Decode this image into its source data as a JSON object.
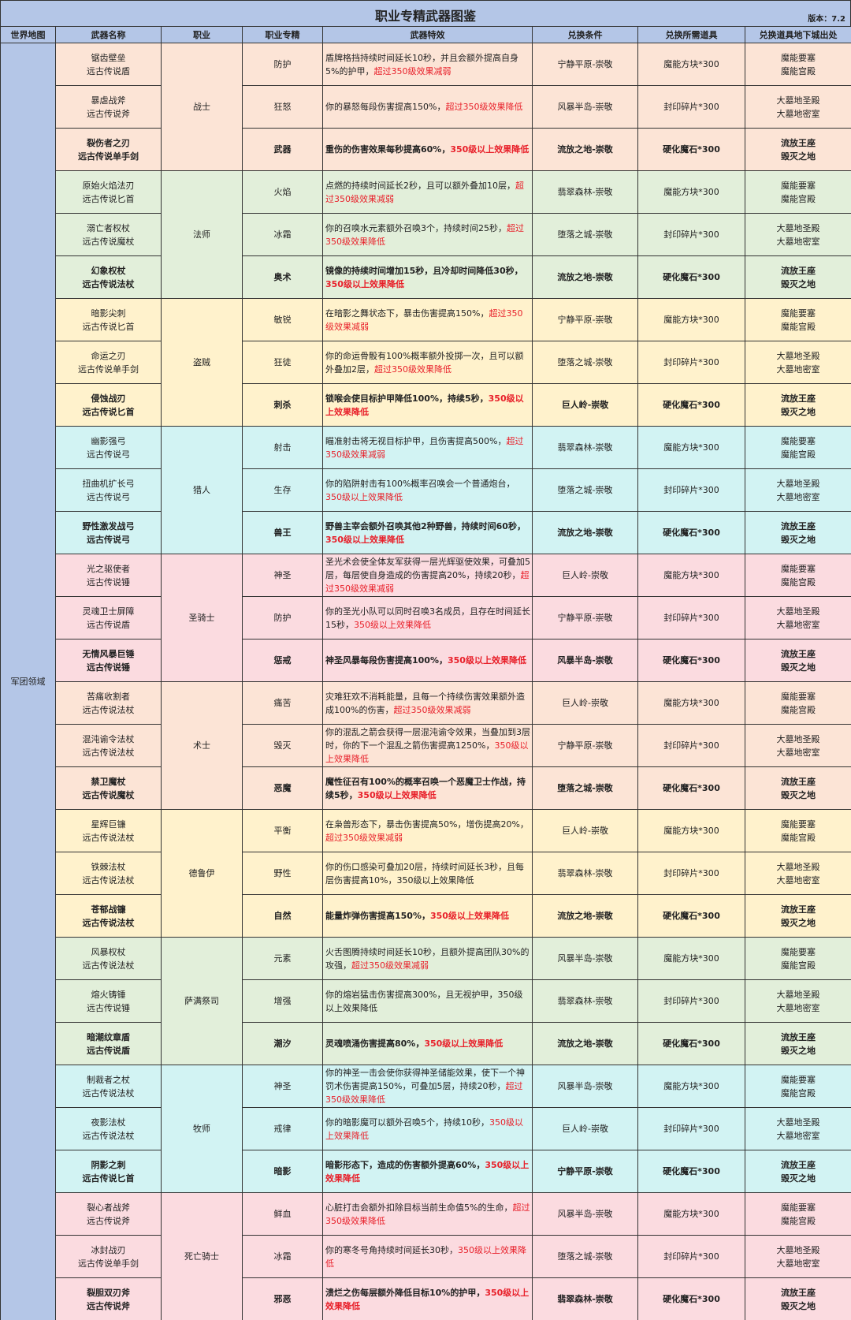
{
  "title": "职业专精武器图鉴",
  "version": "版本：7.2",
  "headers": [
    "世界地图",
    "武器名称",
    "职业",
    "职业专精",
    "武器特效",
    "兑换条件",
    "兑换所需道具",
    "兑换道具地下城出处"
  ],
  "world_map": "军团领域",
  "colors": {
    "header": "#b4c6e7",
    "warrior": "#fce4d6",
    "mage": "#e2efda",
    "rogue": "#fff2cc",
    "hunter": "#d2f3f3",
    "paladin": "#fbdbe0",
    "warlock": "#fce4d6",
    "druid": "#fff2cc",
    "shaman": "#e2efda",
    "priest": "#d2f3f3",
    "deathknight": "#fbdbe0",
    "highlight_text": "#e8202a"
  },
  "classes": [
    {
      "name": "战士",
      "color": "#fce4d6",
      "rows": [
        {
          "weapon": "锯齿壁垒",
          "type": "远古传说盾",
          "spec": "防护",
          "effect": "盾牌格挡持续时间延长10秒，并且会额外提高自身5%的护甲，",
          "effect_note": "超过350级效果减弱",
          "condition": "宁静平原-崇敬",
          "item": "魔能方块*300",
          "dungeons": [
            "魔能要塞",
            "魔能宫殿"
          ]
        },
        {
          "weapon": "暴虐战斧",
          "type": "远古传说斧",
          "spec": "狂怒",
          "effect": "你的暴怒每段伤害提高150%，",
          "effect_note": "超过350级效果降低",
          "condition": "风暴半岛-崇敬",
          "item": "封印碎片*300",
          "dungeons": [
            "大墓地圣殿",
            "大墓地密室"
          ]
        },
        {
          "weapon": "裂伤者之刃",
          "type": "远古传说单手剑",
          "spec": "武器",
          "effect": "重伤的伤害效果每秒提高60%，",
          "effect_note": "350级以上效果降低",
          "condition": "流放之地-崇敬",
          "item": "硬化魔石*300",
          "dungeons": [
            "流放王座",
            "毁灭之地"
          ]
        }
      ]
    },
    {
      "name": "法师",
      "color": "#e2efda",
      "rows": [
        {
          "weapon": "原始火焰法刃",
          "type": "远古传说匕首",
          "spec": "火焰",
          "effect": "点燃的持续时间延长2秒，且可以额外叠加10层，",
          "effect_note": "超过350级效果减弱",
          "condition": "翡翠森林-崇敬",
          "item": "魔能方块*300",
          "dungeons": [
            "魔能要塞",
            "魔能宫殿"
          ]
        },
        {
          "weapon": "溺亡者权杖",
          "type": "远古传说魔杖",
          "spec": "冰霜",
          "effect": "你的召唤水元素额外召唤3个，持续时间25秒，",
          "effect_note": "超过350级效果降低",
          "condition": "堕落之城-崇敬",
          "item": "封印碎片*300",
          "dungeons": [
            "大墓地圣殿",
            "大墓地密室"
          ]
        },
        {
          "weapon": "幻象权杖",
          "type": "远古传说法杖",
          "spec": "奥术",
          "effect": "镜像的持续时间增加15秒，且冷却时间降低30秒，",
          "effect_note": "350级以上效果降低",
          "condition": "流放之地-崇敬",
          "item": "硬化魔石*300",
          "dungeons": [
            "流放王座",
            "毁灭之地"
          ]
        }
      ]
    },
    {
      "name": "盗贼",
      "color": "#fff2cc",
      "rows": [
        {
          "weapon": "暗影尖刺",
          "type": "远古传说匕首",
          "spec": "敏锐",
          "effect": "在暗影之舞状态下，暴击伤害提高150%，",
          "effect_note": "超过350级效果减弱",
          "condition": "宁静平原-崇敬",
          "item": "魔能方块*300",
          "dungeons": [
            "魔能要塞",
            "魔能宫殿"
          ]
        },
        {
          "weapon": "命运之刃",
          "type": "远古传说单手剑",
          "spec": "狂徒",
          "effect": "你的命运骨骰有100%概率额外投掷一次，且可以额外叠加2层，",
          "effect_note": "超过350级效果降低",
          "condition": "堕落之城-崇敬",
          "item": "封印碎片*300",
          "dungeons": [
            "大墓地圣殿",
            "大墓地密室"
          ]
        },
        {
          "weapon": "侵蚀战刃",
          "type": "远古传说匕首",
          "spec": "刺杀",
          "effect": "锁喉会使目标护甲降低100%，持续5秒，",
          "effect_note": "350级以上效果降低",
          "condition": "巨人岭-崇敬",
          "item": "硬化魔石*300",
          "dungeons": [
            "流放王座",
            "毁灭之地"
          ]
        }
      ]
    },
    {
      "name": "猎人",
      "color": "#d2f3f3",
      "rows": [
        {
          "weapon": "幽影强弓",
          "type": "远古传说弓",
          "spec": "射击",
          "effect": "瞄准射击将无视目标护甲，且伤害提高500%，",
          "effect_note": "超过350级效果减弱",
          "condition": "翡翠森林-崇敬",
          "item": "魔能方块*300",
          "dungeons": [
            "魔能要塞",
            "魔能宫殿"
          ]
        },
        {
          "weapon": "扭曲机扩长弓",
          "type": "远古传说弓",
          "spec": "生存",
          "effect": "你的陷阱射击有100%概率召唤会一个普通炮台，",
          "effect_note": "350级以上效果降低",
          "condition": "堕落之城-崇敬",
          "item": "封印碎片*300",
          "dungeons": [
            "大墓地圣殿",
            "大墓地密室"
          ]
        },
        {
          "weapon": "野性激发战弓",
          "type": "远古传说弓",
          "spec": "兽王",
          "effect": "野兽主宰会额外召唤其他2种野兽，持续时间60秒，",
          "effect_note": "350级以上效果降低",
          "condition": "流放之地-崇敬",
          "item": "硬化魔石*300",
          "dungeons": [
            "流放王座",
            "毁灭之地"
          ]
        }
      ]
    },
    {
      "name": "圣骑士",
      "color": "#fbdbe0",
      "rows": [
        {
          "weapon": "光之驱使者",
          "type": "远古传说锤",
          "spec": "神圣",
          "effect": "圣光术会使全体友军获得一层光辉驱使效果，可叠加5层，每层使自身造成的伤害提高20%，持续20秒，",
          "effect_note": "超过350级效果减弱",
          "condition": "巨人岭-崇敬",
          "item": "魔能方块*300",
          "dungeons": [
            "魔能要塞",
            "魔能宫殿"
          ]
        },
        {
          "weapon": "灵魂卫士屏障",
          "type": "远古传说盾",
          "spec": "防护",
          "effect": "你的圣光小队可以同时召唤3名成员，且存在时间延长15秒，",
          "effect_note": "350级以上效果降低",
          "condition": "宁静平原-崇敬",
          "item": "封印碎片*300",
          "dungeons": [
            "大墓地圣殿",
            "大墓地密室"
          ]
        },
        {
          "weapon": "无情风暴巨锤",
          "type": "远古传说锤",
          "spec": "惩戒",
          "effect": "神圣风暴每段伤害提高100%，",
          "effect_note": "350级以上效果降低",
          "condition": "风暴半岛-崇敬",
          "item": "硬化魔石*300",
          "dungeons": [
            "流放王座",
            "毁灭之地"
          ]
        }
      ]
    },
    {
      "name": "术士",
      "color": "#fce4d6",
      "rows": [
        {
          "weapon": "苦痛收割者",
          "type": "远古传说法杖",
          "spec": "痛苦",
          "effect": "灾难狂欢不消耗能量，且每一个持续伤害效果额外造成100%的伤害，",
          "effect_note": "超过350级效果减弱",
          "condition": "巨人岭-崇敬",
          "item": "魔能方块*300",
          "dungeons": [
            "魔能要塞",
            "魔能宫殿"
          ]
        },
        {
          "weapon": "混沌谕令法杖",
          "type": "远古传说法杖",
          "spec": "毁灭",
          "effect": "你的混乱之箭会获得一层混沌谕令效果，当叠加到3层时，你的下一个混乱之箭伤害提高1250%，",
          "effect_note": "350级以上效果降低",
          "condition": "宁静平原-崇敬",
          "item": "封印碎片*300",
          "dungeons": [
            "大墓地圣殿",
            "大墓地密室"
          ]
        },
        {
          "weapon": "禁卫魔杖",
          "type": "远古传说魔杖",
          "spec": "恶魔",
          "effect": "魔性征召有100%的概率召唤一个恶魔卫士作战，持续5秒，",
          "effect_note": "350级以上效果降低",
          "condition": "堕落之城-崇敬",
          "item": "硬化魔石*300",
          "dungeons": [
            "流放王座",
            "毁灭之地"
          ]
        }
      ]
    },
    {
      "name": "德鲁伊",
      "color": "#fff2cc",
      "rows": [
        {
          "weapon": "星辉巨镰",
          "type": "远古传说法杖",
          "spec": "平衡",
          "effect": "在枭兽形态下，暴击伤害提高50%，增伤提高20%，",
          "effect_note": "超过350级效果减弱",
          "condition": "巨人岭-崇敬",
          "item": "魔能方块*300",
          "dungeons": [
            "魔能要塞",
            "魔能宫殿"
          ]
        },
        {
          "weapon": "铁棘法杖",
          "type": "远古传说法杖",
          "spec": "野性",
          "effect": "你的伤口感染可叠加20层，持续时间延长3秒，且每层伤害提高10%，350级以上效果降低",
          "effect_note": "",
          "condition": "翡翠森林-崇敬",
          "item": "封印碎片*300",
          "dungeons": [
            "大墓地圣殿",
            "大墓地密室"
          ]
        },
        {
          "weapon": "苍郁战镰",
          "type": "远古传说法杖",
          "spec": "自然",
          "effect": "能量炸弹伤害提高150%，",
          "effect_note": "350级以上效果降低",
          "condition": "流放之地-崇敬",
          "item": "硬化魔石*300",
          "dungeons": [
            "流放王座",
            "毁灭之地"
          ]
        }
      ]
    },
    {
      "name": "萨满祭司",
      "color": "#e2efda",
      "rows": [
        {
          "weapon": "风暴权杖",
          "type": "远古传说法杖",
          "spec": "元素",
          "effect": "火舌图腾持续时间延长10秒，且额外提高团队30%的攻强，",
          "effect_note": "超过350级效果减弱",
          "condition": "风暴半岛-崇敬",
          "item": "魔能方块*300",
          "dungeons": [
            "魔能要塞",
            "魔能宫殿"
          ]
        },
        {
          "weapon": "熔火铸锤",
          "type": "远古传说锤",
          "spec": "增强",
          "effect": "你的熔岩猛击伤害提高300%，且无视护甲，350级以上效果降低",
          "effect_note": "",
          "condition": "翡翠森林-崇敬",
          "item": "封印碎片*300",
          "dungeons": [
            "大墓地圣殿",
            "大墓地密室"
          ]
        },
        {
          "weapon": "暗潮纹章盾",
          "type": "远古传说盾",
          "spec": "潮汐",
          "effect": "灵魂喷涌伤害提高80%，",
          "effect_note": "350级以上效果降低",
          "condition": "流放之地-崇敬",
          "item": "硬化魔石*300",
          "dungeons": [
            "流放王座",
            "毁灭之地"
          ]
        }
      ]
    },
    {
      "name": "牧师",
      "color": "#d2f3f3",
      "rows": [
        {
          "weapon": "制裁者之杖",
          "type": "远古传说法杖",
          "spec": "神圣",
          "effect": "你的神圣一击会使你获得神圣储能效果，使下一个神罚术伤害提高150%，可叠加5层，持续20秒，",
          "effect_note": "超过350级效果降低",
          "condition": "风暴半岛-崇敬",
          "item": "魔能方块*300",
          "dungeons": [
            "魔能要塞",
            "魔能宫殿"
          ]
        },
        {
          "weapon": "夜影法杖",
          "type": "远古传说法杖",
          "spec": "戒律",
          "effect": "你的暗影魔可以额外召唤5个，持续10秒，",
          "effect_note": "350级以上效果降低",
          "condition": "巨人岭-崇敬",
          "item": "封印碎片*300",
          "dungeons": [
            "大墓地圣殿",
            "大墓地密室"
          ]
        },
        {
          "weapon": "阴影之刺",
          "type": "远古传说匕首",
          "spec": "暗影",
          "effect": "暗影形态下，造成的伤害额外提高60%，",
          "effect_note": "350级以上效果降低",
          "condition": "宁静平原-崇敬",
          "item": "硬化魔石*300",
          "dungeons": [
            "流放王座",
            "毁灭之地"
          ]
        }
      ]
    },
    {
      "name": "死亡骑士",
      "color": "#fbdbe0",
      "rows": [
        {
          "weapon": "裂心者战斧",
          "type": "远古传说斧",
          "spec": "鲜血",
          "effect": "心脏打击会额外扣除目标当前生命值5%的生命，",
          "effect_note": "超过350级效果降低",
          "condition": "风暴半岛-崇敬",
          "item": "魔能方块*300",
          "dungeons": [
            "魔能要塞",
            "魔能宫殿"
          ]
        },
        {
          "weapon": "冰封战刃",
          "type": "远古传说单手剑",
          "spec": "冰霜",
          "effect": "你的寒冬号角持续时间延长30秒，",
          "effect_note": "350级以上效果降低",
          "condition": "堕落之城-崇敬",
          "item": "封印碎片*300",
          "dungeons": [
            "大墓地圣殿",
            "大墓地密室"
          ]
        },
        {
          "weapon": "裂胆双刃斧",
          "type": "远古传说斧",
          "spec": "邪恶",
          "effect": "溃烂之伤每层额外降低目标10%的护甲，",
          "effect_note": "350级以上效果降低",
          "condition": "翡翠森林-崇敬",
          "item": "硬化魔石*300",
          "dungeons": [
            "流放王座",
            "毁灭之地"
          ]
        }
      ]
    }
  ]
}
